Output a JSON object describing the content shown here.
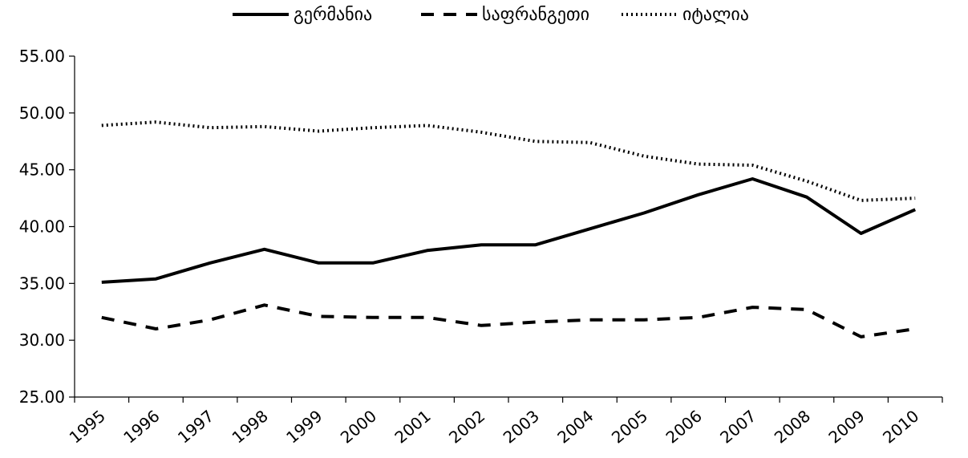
{
  "chart_data": {
    "type": "line",
    "x": [
      "1995",
      "1996",
      "1997",
      "1998",
      "1999",
      "2000",
      "2001",
      "2002",
      "2003",
      "2004",
      "2005",
      "2006",
      "2007",
      "2008",
      "2009",
      "2010"
    ],
    "series": [
      {
        "name": "გერმანია",
        "style": "solid",
        "color": "#000000",
        "values": [
          35.1,
          35.4,
          36.8,
          38.0,
          36.8,
          36.8,
          37.9,
          38.4,
          38.4,
          39.8,
          41.2,
          42.8,
          44.2,
          42.6,
          39.4,
          41.5
        ]
      },
      {
        "name": "საფრანგეთი",
        "style": "dashed",
        "color": "#000000",
        "values": [
          32.0,
          31.0,
          31.8,
          33.1,
          32.1,
          32.0,
          32.0,
          31.3,
          31.6,
          31.8,
          31.8,
          32.0,
          32.9,
          32.7,
          30.3,
          31.0
        ]
      },
      {
        "name": "იტალია",
        "style": "dotted",
        "color": "#000000",
        "values": [
          48.9,
          49.2,
          48.7,
          48.8,
          48.4,
          48.7,
          48.9,
          48.3,
          47.5,
          47.4,
          46.2,
          45.5,
          45.4,
          44.0,
          42.3,
          42.5
        ]
      }
    ],
    "y_ticks": [
      "25.00",
      "30.00",
      "35.00",
      "40.00",
      "45.00",
      "50.00",
      "55.00"
    ],
    "ylim": [
      25,
      55
    ],
    "grid": false,
    "legend": "top-center"
  }
}
